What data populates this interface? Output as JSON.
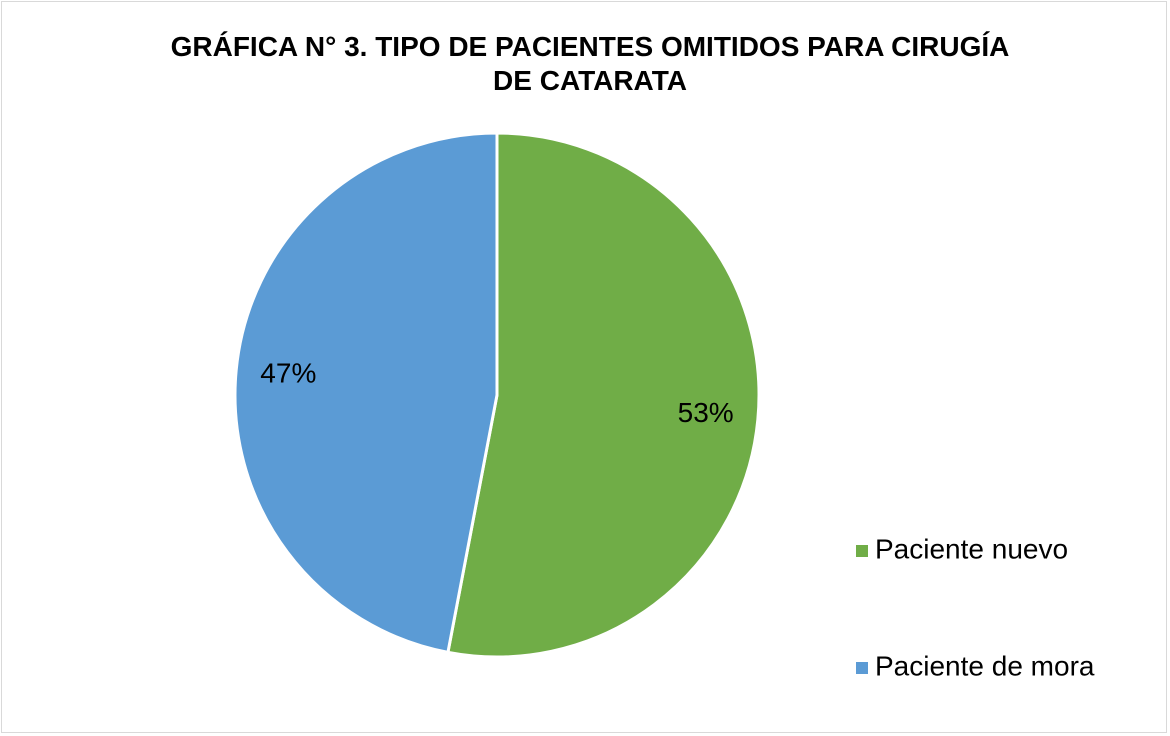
{
  "chart_data": {
    "type": "pie",
    "title": "GRÁFICA N° 3. TIPO DE PACIENTES OMITIDOS PARA CIRUGÍA DE CATARATA",
    "series": [
      {
        "name": "Paciente nuevo",
        "color": "#70ad47",
        "values": [
          53
        ],
        "value_labels": [
          "53%"
        ]
      },
      {
        "name": "Paciente de mora",
        "color": "#5b9bd5",
        "values": [
          47
        ],
        "value_labels": [
          "47%"
        ]
      }
    ],
    "legend": "right"
  }
}
